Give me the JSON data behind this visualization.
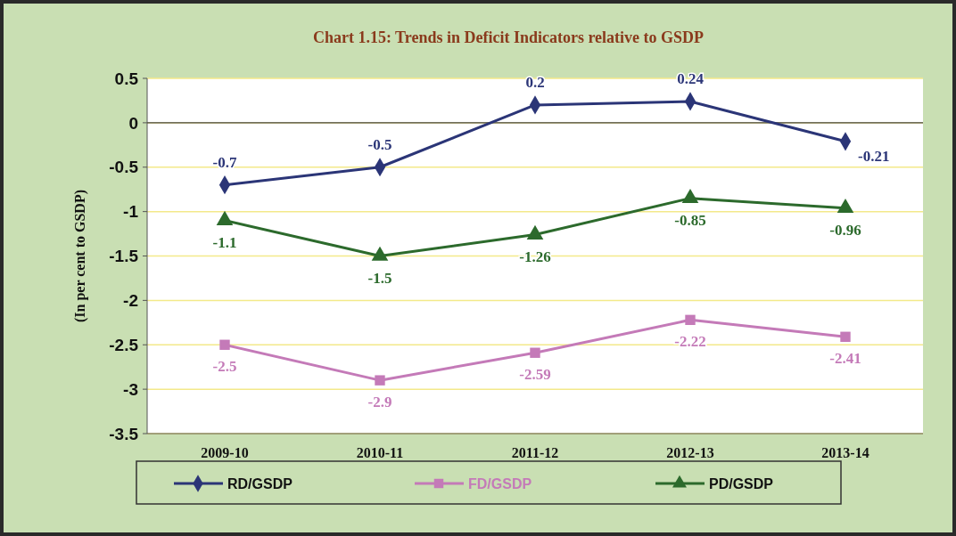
{
  "chart_data": {
    "type": "line",
    "title": "Chart 1.15:  Trends in Deficit Indicators relative to GSDP",
    "ylabel": "(In per cent to GSDP)",
    "categories": [
      "2009-10",
      "2010-11",
      "2011-12",
      "2012-13",
      "2013-14"
    ],
    "series": [
      {
        "name": "RD/GSDP",
        "color": "#2b3577",
        "marker": "diamond",
        "values": [
          -0.7,
          -0.5,
          0.2,
          0.24,
          -0.21
        ]
      },
      {
        "name": "FD/GSDP",
        "color": "#c47ab8",
        "marker": "square",
        "values": [
          -2.5,
          -2.9,
          -2.59,
          -2.22,
          -2.41
        ]
      },
      {
        "name": "PD/GSDP",
        "color": "#2c6a2c",
        "marker": "triangle",
        "values": [
          -1.1,
          -1.5,
          -1.26,
          -0.85,
          -0.96
        ]
      }
    ],
    "ylim": [
      -3.5,
      0.5
    ],
    "yticks": [
      -3.5,
      -3,
      -2.5,
      -2,
      -1.5,
      -1,
      -0.5,
      0,
      0.5
    ],
    "grid": "y",
    "legend": "bottom",
    "data_labels": true,
    "line_style": "solid"
  }
}
